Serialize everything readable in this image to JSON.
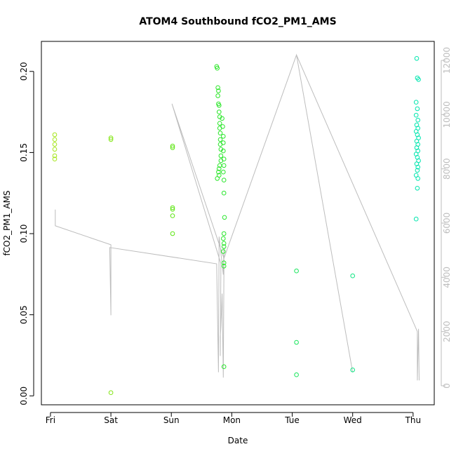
{
  "chart_data": {
    "type": "scatter",
    "title": "ATOM4 Southbound fCO2_PM1_AMS",
    "xlabel": "Date",
    "ylabel": "fCO2_PM1_AMS",
    "x_ticks": [
      "Fri",
      "Sat",
      "Sun",
      "Mon",
      "Tue",
      "Wed",
      "Thu"
    ],
    "xlim": [
      -0.15,
      6.35
    ],
    "ylim": [
      -0.0055,
      0.2185
    ],
    "y_ticks": [
      "0.00",
      "0.05",
      "0.10",
      "0.15",
      "0.20"
    ],
    "y_tick_values": [
      0,
      0.05,
      0.1,
      0.15,
      0.2
    ],
    "y2lim": [
      -700,
      12700
    ],
    "y2_ticks": [
      "0",
      "2000",
      "4000",
      "6000",
      "8000",
      "10000",
      "12000"
    ],
    "y2_tick_values": [
      0,
      2000,
      4000,
      6000,
      8000,
      10000,
      12000
    ],
    "grid": false,
    "series": [
      {
        "type": "scatter",
        "marker": "open-circle",
        "color_scale": [
          "#a8e61a",
          "#00e6b0"
        ],
        "points": [
          [
            0.07,
            0.161
          ],
          [
            0.07,
            0.158
          ],
          [
            0.07,
            0.155
          ],
          [
            0.07,
            0.152
          ],
          [
            0.07,
            0.148
          ],
          [
            0.07,
            0.146
          ],
          [
            1.0,
            0.159
          ],
          [
            1.0,
            0.158
          ],
          [
            1.0,
            0.002
          ],
          [
            2.02,
            0.154
          ],
          [
            2.02,
            0.153
          ],
          [
            2.02,
            0.116
          ],
          [
            2.02,
            0.115
          ],
          [
            2.02,
            0.111
          ],
          [
            2.02,
            0.1
          ],
          [
            2.75,
            0.203
          ],
          [
            2.76,
            0.202
          ],
          [
            2.77,
            0.19
          ],
          [
            2.78,
            0.188
          ],
          [
            2.77,
            0.185
          ],
          [
            2.78,
            0.18
          ],
          [
            2.79,
            0.179
          ],
          [
            2.79,
            0.175
          ],
          [
            2.8,
            0.172
          ],
          [
            2.8,
            0.168
          ],
          [
            2.8,
            0.165
          ],
          [
            2.81,
            0.162
          ],
          [
            2.81,
            0.158
          ],
          [
            2.81,
            0.155
          ],
          [
            2.82,
            0.152
          ],
          [
            2.82,
            0.148
          ],
          [
            2.82,
            0.145
          ],
          [
            2.8,
            0.142
          ],
          [
            2.79,
            0.14
          ],
          [
            2.78,
            0.138
          ],
          [
            2.79,
            0.136
          ],
          [
            2.76,
            0.134
          ],
          [
            2.84,
            0.171
          ],
          [
            2.85,
            0.166
          ],
          [
            2.86,
            0.16
          ],
          [
            2.86,
            0.156
          ],
          [
            2.86,
            0.151
          ],
          [
            2.87,
            0.146
          ],
          [
            2.87,
            0.142
          ],
          [
            2.86,
            0.138
          ],
          [
            2.87,
            0.133
          ],
          [
            2.87,
            0.125
          ],
          [
            2.88,
            0.11
          ],
          [
            2.87,
            0.1
          ],
          [
            2.86,
            0.097
          ],
          [
            2.87,
            0.094
          ],
          [
            2.87,
            0.092
          ],
          [
            2.86,
            0.089
          ],
          [
            2.87,
            0.082
          ],
          [
            2.87,
            0.08
          ],
          [
            2.87,
            0.018
          ],
          [
            4.07,
            0.077
          ],
          [
            4.07,
            0.033
          ],
          [
            4.07,
            0.013
          ],
          [
            5.0,
            0.074
          ],
          [
            5.0,
            0.016
          ],
          [
            6.06,
            0.208
          ],
          [
            6.07,
            0.196
          ],
          [
            6.09,
            0.195
          ],
          [
            6.05,
            0.181
          ],
          [
            6.07,
            0.177
          ],
          [
            6.05,
            0.173
          ],
          [
            6.08,
            0.17
          ],
          [
            6.06,
            0.167
          ],
          [
            6.08,
            0.165
          ],
          [
            6.05,
            0.163
          ],
          [
            6.07,
            0.161
          ],
          [
            6.09,
            0.159
          ],
          [
            6.06,
            0.157
          ],
          [
            6.08,
            0.155
          ],
          [
            6.06,
            0.153
          ],
          [
            6.08,
            0.151
          ],
          [
            6.05,
            0.149
          ],
          [
            6.07,
            0.147
          ],
          [
            6.09,
            0.145
          ],
          [
            6.06,
            0.143
          ],
          [
            6.08,
            0.141
          ],
          [
            6.07,
            0.139
          ],
          [
            6.05,
            0.136
          ],
          [
            6.08,
            0.134
          ],
          [
            6.07,
            0.128
          ],
          [
            6.05,
            0.109
          ]
        ]
      },
      {
        "type": "line",
        "axis": "right",
        "color": "#bdbdbd",
        "points": [
          [
            0.08,
            6500
          ],
          [
            0.08,
            5900
          ],
          [
            1.0,
            5200
          ],
          [
            1.0,
            2600
          ],
          [
            0.98,
            5100
          ],
          [
            2.75,
            4500
          ],
          [
            2.78,
            500
          ],
          [
            2.79,
            5500
          ],
          [
            2.86,
            4100
          ],
          [
            2.87,
            5100
          ],
          [
            2.87,
            4300
          ],
          [
            2.86,
            300
          ],
          [
            2.84,
            3400
          ],
          [
            2.82,
            2200
          ],
          [
            2.81,
            1800
          ],
          [
            2.81,
            1100
          ],
          [
            2.82,
            4500
          ],
          [
            2.01,
            10400
          ],
          [
            2.87,
            4700
          ],
          [
            4.07,
            12200
          ],
          [
            5.0,
            500
          ],
          [
            4.07,
            12200
          ],
          [
            6.07,
            2000
          ],
          [
            6.07,
            200
          ],
          [
            6.09,
            2100
          ],
          [
            6.1,
            200
          ]
        ]
      }
    ]
  }
}
